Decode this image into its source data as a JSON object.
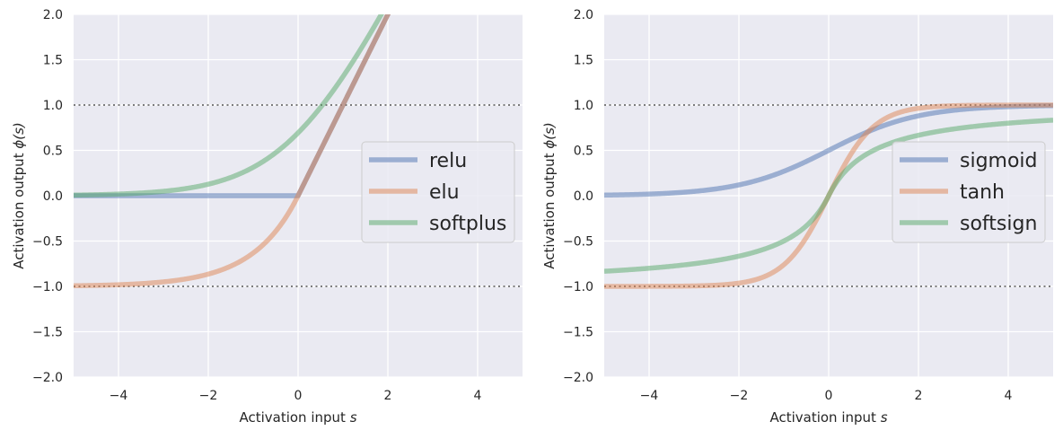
{
  "chart_data": [
    {
      "type": "line",
      "title": "",
      "xlabel_text": "Activation input ",
      "xlabel_var": "s",
      "ylabel_text": "Activation output ",
      "ylabel_var": "ϕ(s)",
      "xlim": [
        -5,
        5
      ],
      "ylim": [
        -2,
        2
      ],
      "xticks": [
        -4,
        -2,
        0,
        2,
        4
      ],
      "yticks": [
        -2.0,
        -1.5,
        -1.0,
        -0.5,
        0.0,
        0.5,
        1.0,
        1.5,
        2.0
      ],
      "grid": true,
      "reference_lines": [
        1.0,
        -1.0
      ],
      "legend_position": "center-right",
      "series": [
        {
          "name": "relu",
          "function": "relu",
          "color": "#4c72b0"
        },
        {
          "name": "elu",
          "function": "elu",
          "color": "#dd8452"
        },
        {
          "name": "softplus",
          "function": "softplus",
          "color": "#55a868"
        }
      ]
    },
    {
      "type": "line",
      "title": "",
      "xlabel_text": "Activation input ",
      "xlabel_var": "s",
      "ylabel_text": "Activation output ",
      "ylabel_var": "ϕ(s)",
      "xlim": [
        -5,
        5
      ],
      "ylim": [
        -2,
        2
      ],
      "xticks": [
        -4,
        -2,
        0,
        2,
        4
      ],
      "yticks": [
        -2.0,
        -1.5,
        -1.0,
        -0.5,
        0.0,
        0.5,
        1.0,
        1.5,
        2.0
      ],
      "grid": true,
      "reference_lines": [
        1.0,
        -1.0
      ],
      "legend_position": "center-right",
      "series": [
        {
          "name": "sigmoid",
          "function": "sigmoid",
          "color": "#4c72b0"
        },
        {
          "name": "tanh",
          "function": "tanh",
          "color": "#dd8452"
        },
        {
          "name": "softsign",
          "function": "softsign",
          "color": "#55a868"
        }
      ]
    }
  ]
}
